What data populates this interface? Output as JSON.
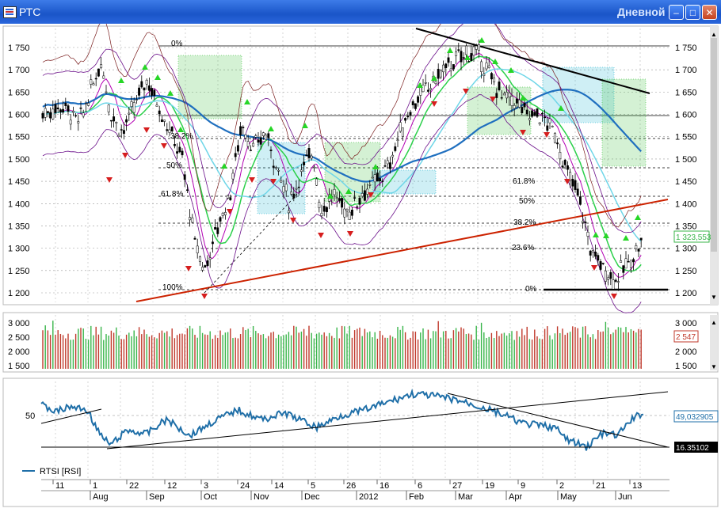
{
  "window": {
    "title": "РТС",
    "period": "Дневной",
    "buttons": [
      "minimize",
      "maximize",
      "close"
    ]
  },
  "price_panel": {
    "y_ticks": [
      "1 750",
      "1 700",
      "1 650",
      "1 600",
      "1 550",
      "1 500",
      "1 450",
      "1 400",
      "1 350",
      "1 300",
      "1 250",
      "1 200"
    ],
    "last_price_label": "1 323,553",
    "fib_left": [
      "0%",
      "38.2%",
      "50%",
      "61.8%",
      "100%"
    ],
    "fib_right": [
      "61.8%",
      "50%",
      "38.2%",
      "23.6%",
      "0%"
    ]
  },
  "volume_panel": {
    "y_ticks": [
      "3 000",
      "2 500",
      "2 000",
      "1 500"
    ],
    "last_volume_label": "2 547"
  },
  "rsi_panel": {
    "level_label": "50",
    "rsi_value": "49,032905",
    "level_value": "16.35102",
    "legend": "RTSI [RSI]"
  },
  "x_axis": {
    "day_labels": [
      "11",
      "1",
      "22",
      "12",
      "3",
      "24",
      "14",
      "5",
      "26",
      "16",
      "6",
      "27",
      "19",
      "9",
      "2",
      "21",
      "13"
    ],
    "month_labels": [
      "Aug",
      "Sep",
      "Oct",
      "Nov",
      "Dec",
      "2012",
      "Feb",
      "Mar",
      "Apr",
      "May",
      "Jun"
    ]
  },
  "colors": {
    "titlebar": "#2a66dc",
    "up_candle": "#000000",
    "volume_up": "#39b54a",
    "volume_down": "#c0392b",
    "trend_red": "#cc2200",
    "ma_blue": "#1f6fbf",
    "ma_cyan": "#6fd6e8",
    "ma_green": "#2bd04a",
    "envelope": "#6b0f8a",
    "cloud_green": "#3bbf3b",
    "cloud_cyan": "#23b4d0",
    "rsi_line": "#1f6fa8"
  }
}
